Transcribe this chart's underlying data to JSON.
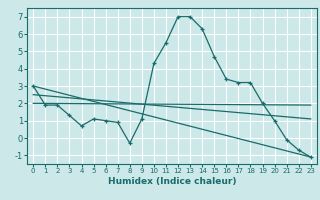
{
  "title": "",
  "xlabel": "Humidex (Indice chaleur)",
  "bg_color": "#cce8e8",
  "grid_color": "#ffffff",
  "line_color": "#1a6b6b",
  "xlim": [
    -0.5,
    23.5
  ],
  "ylim": [
    -1.5,
    7.5
  ],
  "yticks": [
    -1,
    0,
    1,
    2,
    3,
    4,
    5,
    6,
    7
  ],
  "xticks": [
    0,
    1,
    2,
    3,
    4,
    5,
    6,
    7,
    8,
    9,
    10,
    11,
    12,
    13,
    14,
    15,
    16,
    17,
    18,
    19,
    20,
    21,
    22,
    23
  ],
  "series": [
    {
      "x": [
        0,
        1,
        2,
        3,
        4,
        5,
        6,
        7,
        8,
        9,
        10,
        11,
        12,
        13,
        14,
        15,
        16,
        17,
        18,
        19,
        20,
        21,
        22,
        23
      ],
      "y": [
        3.0,
        1.9,
        1.9,
        1.3,
        0.7,
        1.1,
        1.0,
        0.9,
        -0.3,
        1.1,
        4.3,
        5.5,
        7.0,
        7.0,
        6.3,
        4.7,
        3.4,
        3.2,
        3.2,
        2.0,
        1.0,
        -0.1,
        -0.7,
        -1.1
      ],
      "marker": true
    },
    {
      "x": [
        0,
        23
      ],
      "y": [
        3.0,
        -1.1
      ],
      "marker": false
    },
    {
      "x": [
        0,
        23
      ],
      "y": [
        2.0,
        1.9
      ],
      "marker": false
    },
    {
      "x": [
        0,
        23
      ],
      "y": [
        2.5,
        1.1
      ],
      "marker": false
    }
  ]
}
